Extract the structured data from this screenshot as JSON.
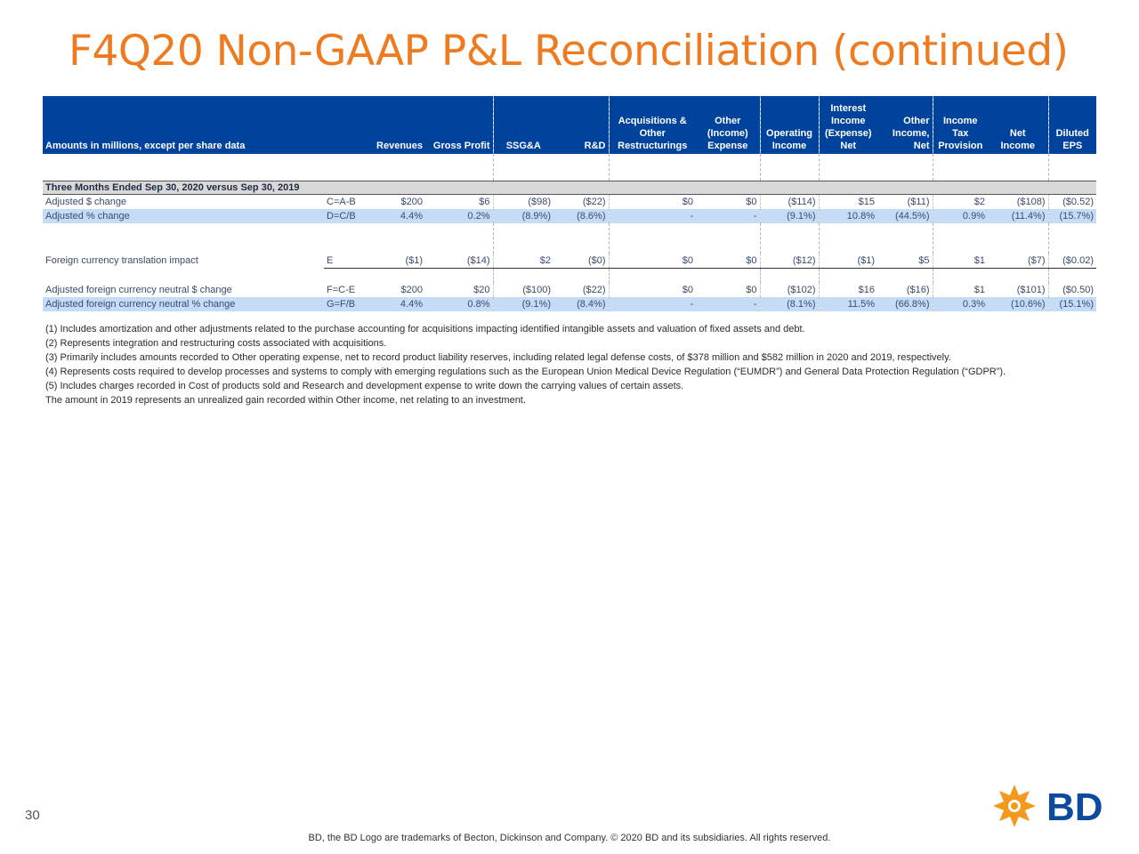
{
  "title": "F4Q20 Non-GAAP P&L Reconciliation (continued)",
  "table": {
    "headers": {
      "label": "Amounts in millions, except per share data",
      "formula": "",
      "revenues": "Revenues",
      "gross_profit": "Gross Profit",
      "ssga": "SSG&A",
      "rd": "R&D",
      "acq_1": "Acquisitions &",
      "acq_2": "Other",
      "acq_3": "Restructurings",
      "oie_1": "Other",
      "oie_2": "(Income)",
      "oie_3": "Expense",
      "op_1": "Operating",
      "op_2": "Income",
      "int_1": "Interest",
      "int_2": "Income",
      "int_3": "(Expense)",
      "int_4": "Net",
      "oin_1": "Other",
      "oin_2": "Income,",
      "oin_3": "Net",
      "tax_1": "Income",
      "tax_2": "Tax",
      "tax_3": "Provision",
      "ni_1": "Net",
      "ni_2": "Income",
      "eps_1": "Diluted",
      "eps_2": "EPS"
    },
    "section_label": "Three Months Ended Sep 30, 2020 versus Sep 30, 2019",
    "rows": [
      {
        "label": "Adjusted $ change",
        "formula": "C=A-B",
        "values": [
          "$200",
          "$6",
          "($98)",
          "($22)",
          "$0",
          "$0",
          "($114)",
          "$15",
          "($11)",
          "$2",
          "($108)",
          "($0.52)"
        ]
      },
      {
        "label": "Adjusted % change",
        "formula": "D=C/B",
        "values": [
          "4.4%",
          "0.2%",
          "(8.9%)",
          "(8.6%)",
          "-",
          "-",
          "(9.1%)",
          "10.8%",
          "(44.5%)",
          "0.9%",
          "(11.4%)",
          "(15.7%)"
        ]
      },
      {
        "label": "Foreign currency translation impact",
        "formula": "E",
        "values": [
          "($1)",
          "($14)",
          "$2",
          "($0)",
          "$0",
          "$0",
          "($12)",
          "($1)",
          "$5",
          "$1",
          "($7)",
          "($0.02)"
        ]
      },
      {
        "label": "Adjusted foreign currency neutral $ change",
        "formula": "F=C-E",
        "values": [
          "$200",
          "$20",
          "($100)",
          "($22)",
          "$0",
          "$0",
          "($102)",
          "$16",
          "($16)",
          "$1",
          "($101)",
          "($0.50)"
        ]
      },
      {
        "label": "Adjusted foreign currency neutral % change",
        "formula": "G=F/B",
        "values": [
          "4.4%",
          "0.8%",
          "(9.1%)",
          "(8.4%)",
          "-",
          "-",
          "(8.1%)",
          "11.5%",
          "(66.8%)",
          "0.3%",
          "(10.6%)",
          "(15.1%)"
        ]
      }
    ]
  },
  "notes": [
    "(1) Includes amortization and other adjustments related to the purchase accounting for acquisitions impacting identified intangible assets and valuation of fixed assets and debt.",
    "(2)  Represents integration and restructuring costs associated with acquisitions.",
    "(3) Primarily includes amounts recorded to Other operating expense, net to record product liability reserves, including related legal defense costs, of $378 million and $582 million in 2020 and 2019, respectively.",
    "(4) Represents costs required to develop processes and systems to comply with emerging regulations such as the European Union Medical Device Regulation (“EUMDR”) and General Data Protection Regulation (“GDPR”).",
    "(5) Includes charges recorded in Cost of products sold and Research and development expense to write down the carrying values of certain assets.",
    "The amount in 2019 represents an unrealized gain recorded within Other income, net relating to an investment."
  ],
  "page_number": "30",
  "footer": "BD, the BD Logo are trademarks of Becton, Dickinson and Company. © 2020 BD and its subsidiaries. All rights reserved.",
  "logo_text": "BD",
  "colors": {
    "title": "#ee7b1f",
    "header_bg": "#00439c",
    "highlight_row": "#c5dcf7",
    "section_bg": "#d9d9d9",
    "logo_orange": "#f39a1e",
    "logo_blue": "#0a4b9f"
  }
}
